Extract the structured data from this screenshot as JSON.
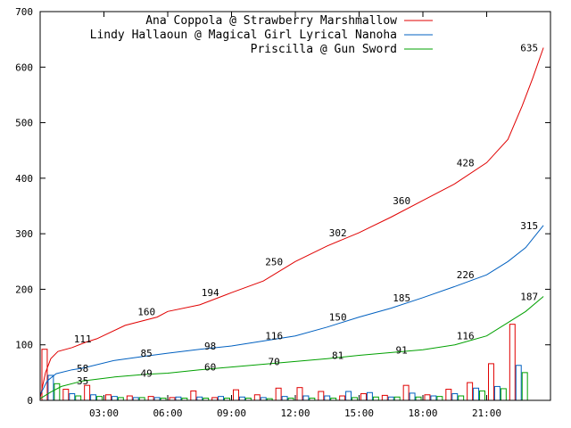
{
  "chart_data": {
    "type": "line",
    "title": "",
    "xlabel": "",
    "ylabel": "",
    "xlim": [
      "00:00",
      "24:00"
    ],
    "ylim": [
      0,
      700
    ],
    "grid": false,
    "legend_position": "top-right",
    "x_ticks": [
      "03:00",
      "06:00",
      "09:00",
      "12:00",
      "15:00",
      "18:00",
      "21:00"
    ],
    "y_ticks": [
      0,
      100,
      200,
      300,
      400,
      500,
      600,
      700
    ],
    "series": [
      {
        "name": "Ana Coppola @ Strawberry Marshmallow",
        "color": "#e00000",
        "points": [
          [
            "00:00",
            5
          ],
          [
            "00:15",
            50
          ],
          [
            "00:30",
            75
          ],
          [
            "00:50",
            88
          ],
          [
            "01:30",
            95
          ],
          [
            "02:10",
            105
          ],
          [
            "02:40",
            111
          ],
          [
            "04:00",
            135
          ],
          [
            "05:30",
            150
          ],
          [
            "06:00",
            160
          ],
          [
            "07:30",
            172
          ],
          [
            "09:00",
            194
          ],
          [
            "10:30",
            215
          ],
          [
            "12:00",
            250
          ],
          [
            "13:30",
            278
          ],
          [
            "15:00",
            302
          ],
          [
            "16:30",
            330
          ],
          [
            "18:00",
            360
          ],
          [
            "19:30",
            390
          ],
          [
            "21:00",
            428
          ],
          [
            "22:00",
            470
          ],
          [
            "22:40",
            530
          ],
          [
            "23:10",
            580
          ],
          [
            "23:40",
            635
          ]
        ]
      },
      {
        "name": "Lindy Hallaoun @ Magical Girl Lyrical Nanoha",
        "color": "#0060c0",
        "points": [
          [
            "00:00",
            10
          ],
          [
            "00:20",
            35
          ],
          [
            "00:45",
            48
          ],
          [
            "01:30",
            55
          ],
          [
            "02:00",
            58
          ],
          [
            "03:30",
            72
          ],
          [
            "05:00",
            80
          ],
          [
            "06:00",
            85
          ],
          [
            "07:30",
            92
          ],
          [
            "09:00",
            98
          ],
          [
            "10:30",
            107
          ],
          [
            "12:00",
            116
          ],
          [
            "13:30",
            132
          ],
          [
            "15:00",
            150
          ],
          [
            "16:30",
            166
          ],
          [
            "18:00",
            185
          ],
          [
            "19:30",
            205
          ],
          [
            "21:00",
            226
          ],
          [
            "22:00",
            250
          ],
          [
            "22:50",
            275
          ],
          [
            "23:40",
            315
          ]
        ]
      },
      {
        "name": "Priscilla @ Gun Sword",
        "color": "#00a000",
        "points": [
          [
            "00:00",
            3
          ],
          [
            "00:30",
            15
          ],
          [
            "01:00",
            25
          ],
          [
            "02:00",
            35
          ],
          [
            "03:30",
            42
          ],
          [
            "05:00",
            47
          ],
          [
            "06:00",
            49
          ],
          [
            "07:30",
            55
          ],
          [
            "09:00",
            60
          ],
          [
            "10:30",
            65
          ],
          [
            "12:00",
            70
          ],
          [
            "13:30",
            75
          ],
          [
            "15:00",
            81
          ],
          [
            "16:30",
            86
          ],
          [
            "18:00",
            91
          ],
          [
            "19:30",
            100
          ],
          [
            "21:00",
            116
          ],
          [
            "22:00",
            140
          ],
          [
            "22:50",
            160
          ],
          [
            "23:40",
            187
          ]
        ]
      }
    ],
    "data_labels": [
      {
        "series": 0,
        "x": "02:00",
        "y": 111,
        "text": "111"
      },
      {
        "series": 0,
        "x": "05:00",
        "y": 160,
        "text": "160"
      },
      {
        "series": 0,
        "x": "08:00",
        "y": 194,
        "text": "194"
      },
      {
        "series": 0,
        "x": "11:00",
        "y": 250,
        "text": "250"
      },
      {
        "series": 0,
        "x": "14:00",
        "y": 302,
        "text": "302"
      },
      {
        "series": 0,
        "x": "17:00",
        "y": 360,
        "text": "360"
      },
      {
        "series": 0,
        "x": "20:00",
        "y": 428,
        "text": "428"
      },
      {
        "series": 0,
        "x": "23:00",
        "y": 635,
        "text": "635"
      },
      {
        "series": 1,
        "x": "02:00",
        "y": 58,
        "text": "58"
      },
      {
        "series": 1,
        "x": "05:00",
        "y": 85,
        "text": "85"
      },
      {
        "series": 1,
        "x": "08:00",
        "y": 98,
        "text": "98"
      },
      {
        "series": 1,
        "x": "11:00",
        "y": 116,
        "text": "116"
      },
      {
        "series": 1,
        "x": "14:00",
        "y": 150,
        "text": "150"
      },
      {
        "series": 1,
        "x": "17:00",
        "y": 185,
        "text": "185"
      },
      {
        "series": 1,
        "x": "20:00",
        "y": 226,
        "text": "226"
      },
      {
        "series": 1,
        "x": "23:00",
        "y": 315,
        "text": "315"
      },
      {
        "series": 2,
        "x": "02:00",
        "y": 35,
        "text": "35"
      },
      {
        "series": 2,
        "x": "05:00",
        "y": 49,
        "text": "49"
      },
      {
        "series": 2,
        "x": "08:00",
        "y": 60,
        "text": "60"
      },
      {
        "series": 2,
        "x": "11:00",
        "y": 70,
        "text": "70"
      },
      {
        "series": 2,
        "x": "14:00",
        "y": 81,
        "text": "81"
      },
      {
        "series": 2,
        "x": "17:00",
        "y": 91,
        "text": "91"
      },
      {
        "series": 2,
        "x": "20:00",
        "y": 116,
        "text": "116"
      },
      {
        "series": 2,
        "x": "23:00",
        "y": 187,
        "text": "187"
      }
    ],
    "histogram": {
      "type": "bar",
      "bin_hours": 1,
      "series": [
        {
          "series": 0,
          "values": [
            92,
            20,
            27,
            10,
            8,
            7,
            5,
            17,
            5,
            19,
            10,
            22,
            23,
            16,
            8,
            12,
            9,
            27,
            10,
            20,
            32,
            66,
            137,
            0
          ]
        },
        {
          "series": 1,
          "values": [
            45,
            12,
            10,
            7,
            5,
            5,
            6,
            6,
            7,
            6,
            5,
            7,
            8,
            8,
            16,
            14,
            6,
            13,
            8,
            12,
            22,
            25,
            63,
            0
          ]
        },
        {
          "series": 2,
          "values": [
            30,
            8,
            7,
            5,
            5,
            4,
            4,
            4,
            4,
            4,
            3,
            4,
            4,
            4,
            5,
            6,
            6,
            6,
            7,
            8,
            17,
            21,
            50,
            0
          ]
        }
      ]
    }
  }
}
